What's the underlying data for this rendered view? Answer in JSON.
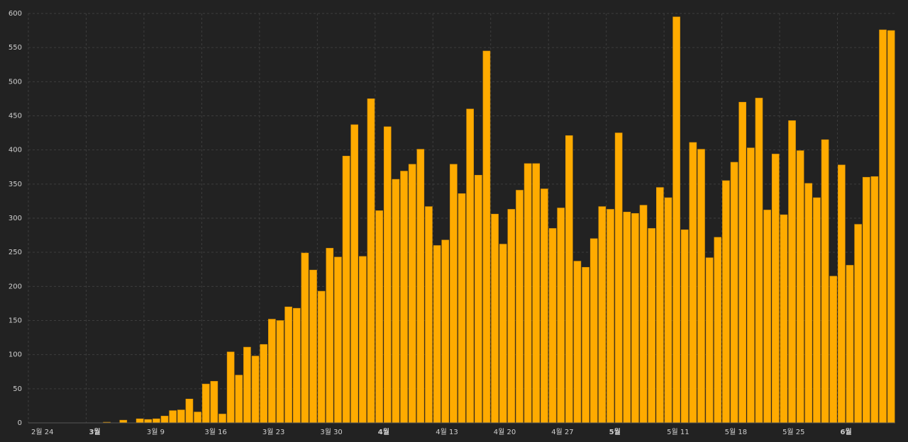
{
  "chart_data": {
    "type": "bar",
    "categories": [
      "2월 24",
      null,
      null,
      null,
      null,
      null,
      null,
      "3월",
      null,
      null,
      null,
      null,
      null,
      null,
      "3월 9",
      null,
      null,
      null,
      null,
      null,
      null,
      "3월 16",
      null,
      null,
      null,
      null,
      null,
      null,
      "3월 23",
      null,
      null,
      null,
      null,
      null,
      null,
      "3월 30",
      null,
      null,
      null,
      null,
      null,
      null,
      "4월",
      null,
      null,
      null,
      null,
      null,
      null,
      "4월 13",
      null,
      null,
      null,
      null,
      null,
      null,
      "4월 20",
      null,
      null,
      null,
      null,
      null,
      null,
      "4월 27",
      null,
      null,
      null,
      null,
      null,
      null,
      "5월",
      null,
      null,
      null,
      null,
      null,
      null,
      "5월 11",
      null,
      null,
      null,
      null,
      null,
      null,
      "5월 18",
      null,
      null,
      null,
      null,
      null,
      null,
      "5월 25",
      null,
      null,
      null,
      null,
      null,
      null,
      "6월",
      null,
      null,
      null,
      null,
      null,
      null
    ],
    "values": [
      0,
      0,
      0,
      0,
      0,
      0,
      0,
      0,
      0,
      1,
      0,
      4,
      0,
      6,
      5,
      6,
      10,
      18,
      19,
      35,
      16,
      57,
      61,
      13,
      104,
      70,
      111,
      98,
      115,
      152,
      150,
      170,
      168,
      249,
      224,
      193,
      256,
      243,
      391,
      437,
      244,
      475,
      311,
      434,
      357,
      369,
      379,
      401,
      317,
      260,
      268,
      379,
      336,
      460,
      363,
      545,
      306,
      262,
      313,
      341,
      380,
      380,
      343,
      285,
      315,
      421,
      237,
      228,
      270,
      317,
      313,
      425,
      309,
      307,
      319,
      285,
      345,
      330,
      595,
      283,
      411,
      401,
      242,
      272,
      355,
      382,
      470,
      403,
      476,
      312,
      394,
      305,
      443,
      399,
      351,
      330,
      415,
      215,
      378,
      231,
      291,
      360,
      361,
      576,
      575
    ],
    "color": "#ffab00",
    "ylim": [
      0,
      600
    ],
    "yticks": [
      0,
      50,
      100,
      150,
      200,
      250,
      300,
      350,
      400,
      450,
      500,
      550,
      600
    ],
    "grid": true
  }
}
